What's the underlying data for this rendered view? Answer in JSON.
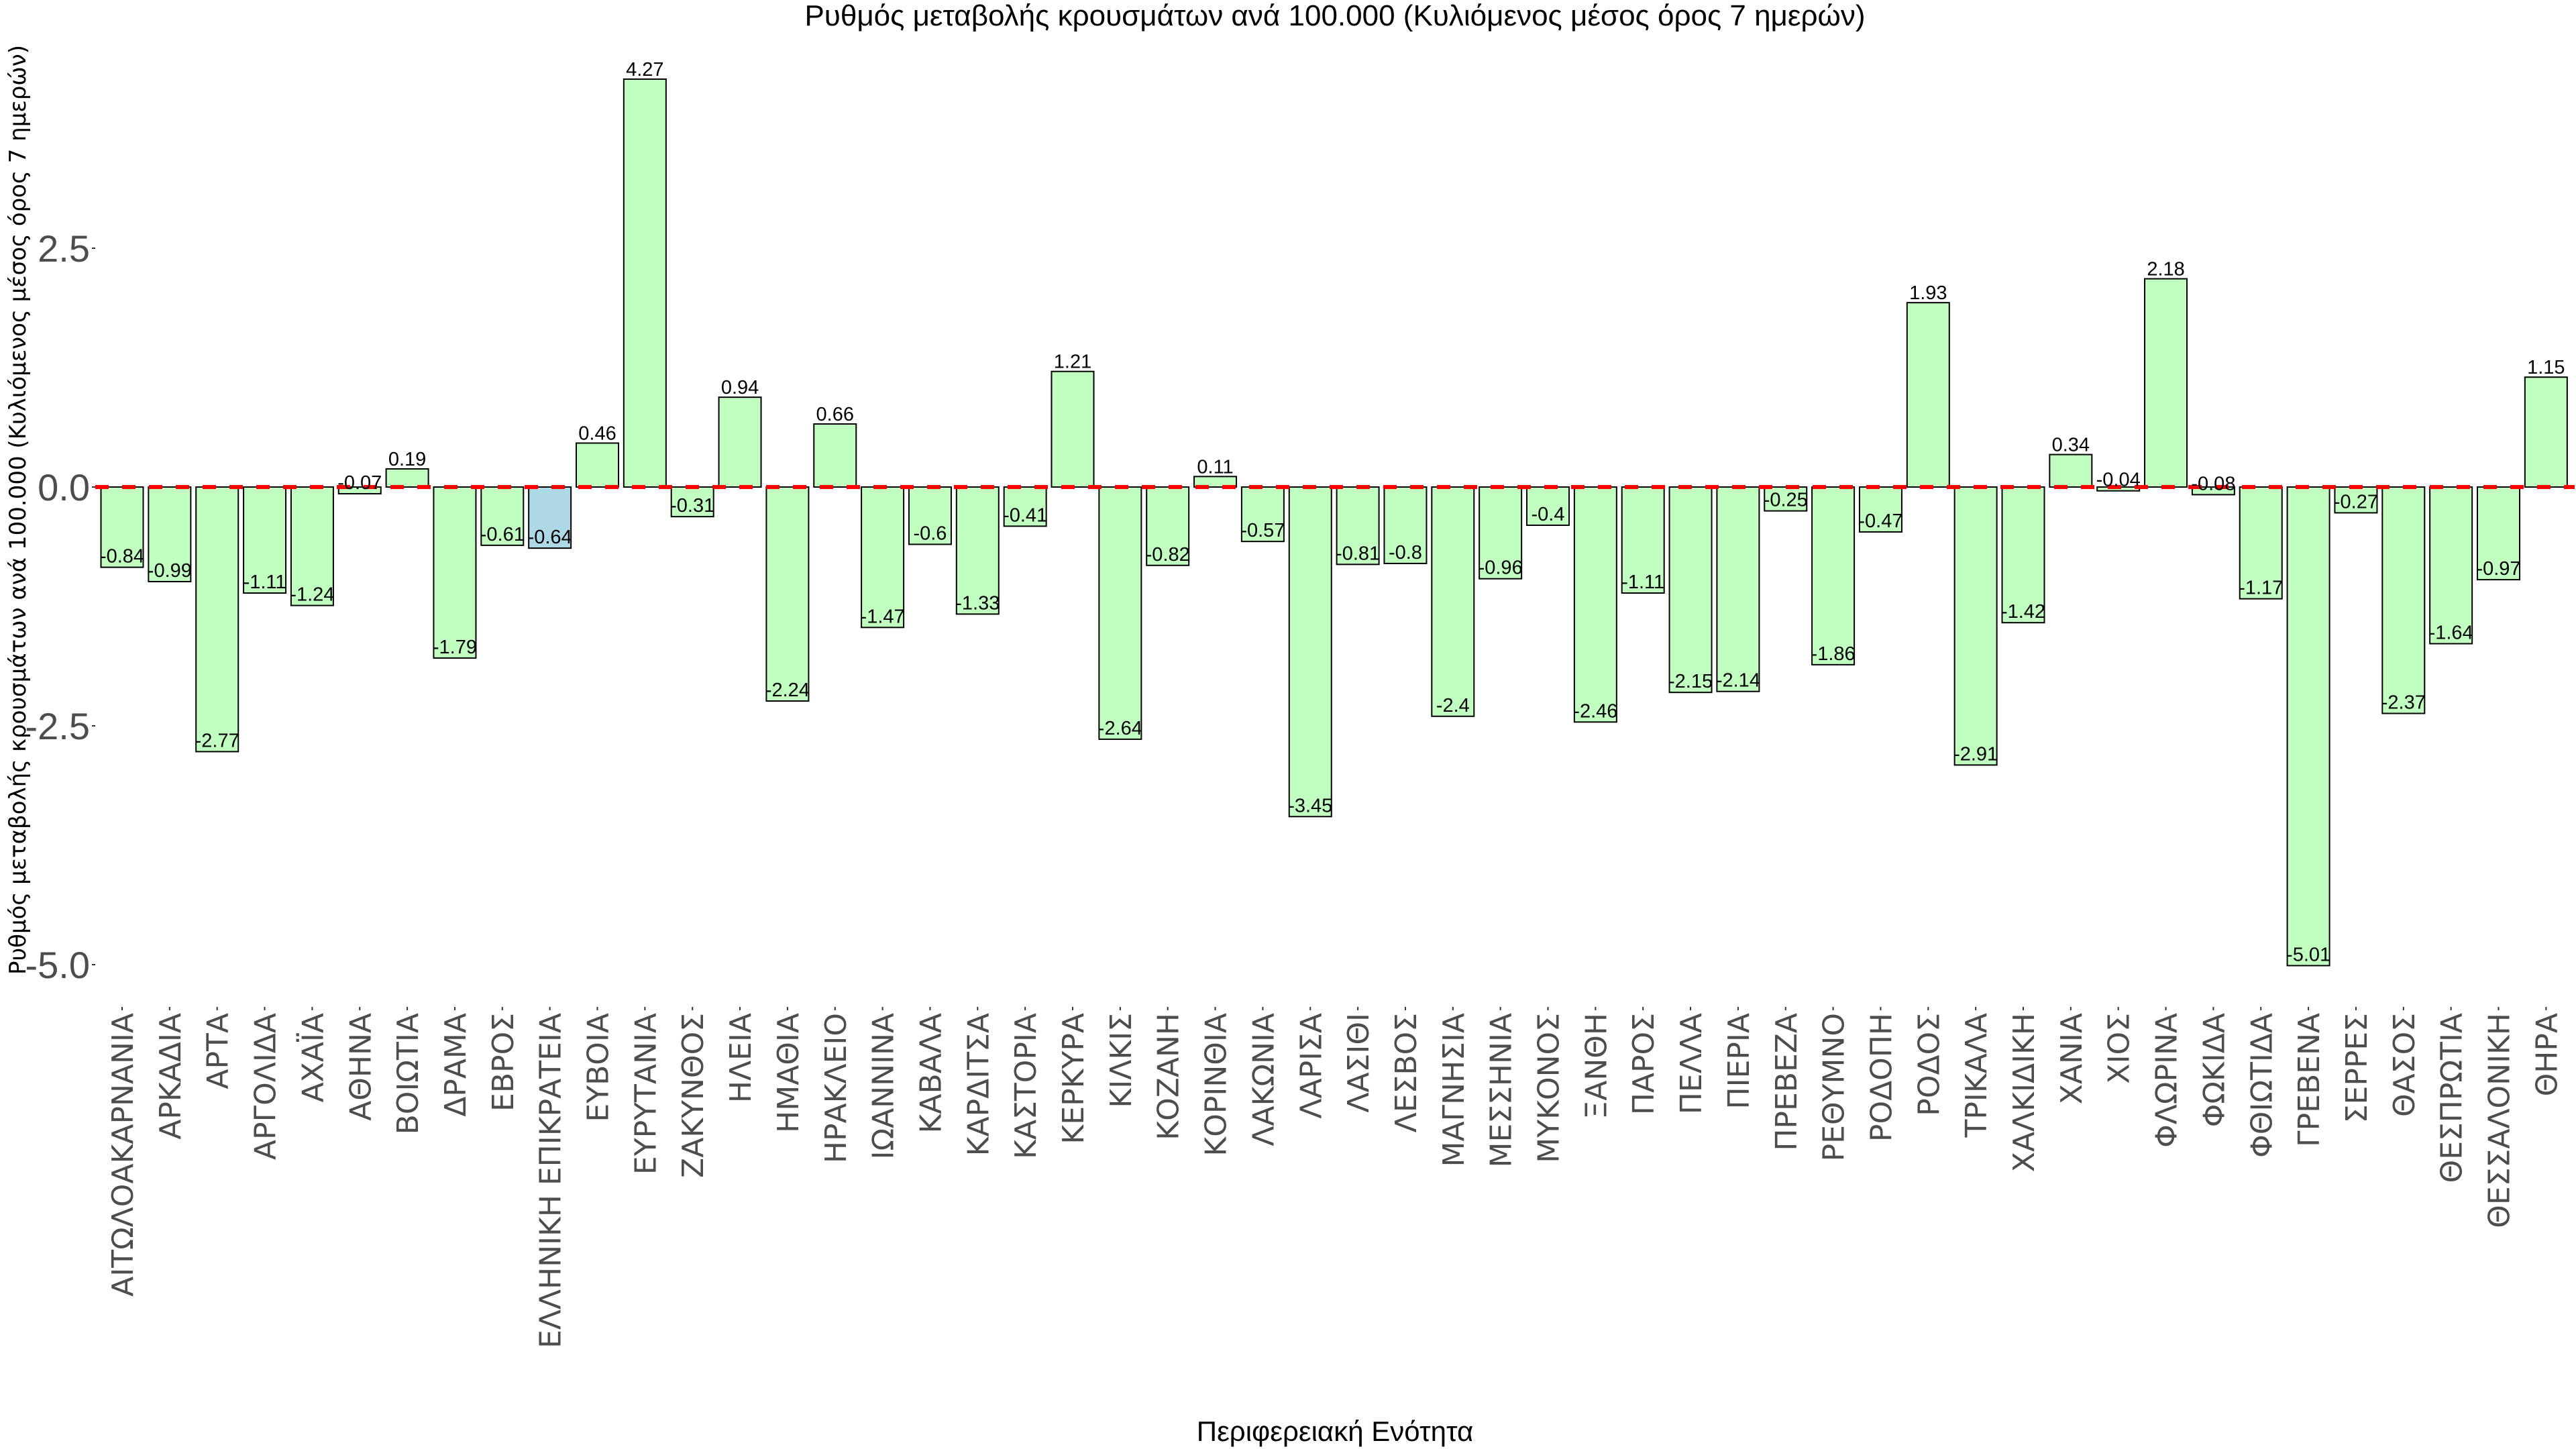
{
  "chart_data": {
    "type": "bar",
    "title": "Ρυθμός μεταβολής κρουσμάτων ανά 100.000 (Κυλιόμενος μέσος όρος 7 ημερών)",
    "xlabel": "Περιφερειακή Ενότητα",
    "ylabel": "Ρυθμός μεταβολής κρουσμάτων ανά 100.000 (Κυλιόμενος μέσος όρος 7 ημερών)",
    "ylim": [
      -5.2,
      4.35
    ],
    "yticks": [
      2.5,
      0.0,
      -2.5,
      -5.0
    ],
    "ytick_labels": [
      "2.5",
      "0.0",
      "-2.5",
      "-5.0"
    ],
    "grid": false,
    "legend": "none",
    "reference_line": {
      "value": 0,
      "style": "dashed",
      "color": "#ff0000"
    },
    "colors": {
      "default_bar": "#c1ffc1",
      "highlight_bar": "#add8e6",
      "bar_border": "#000000"
    },
    "highlight_category": "ΕΛΛΗΝΙΚΗ ΕΠΙΚΡΑΤΕΙΑ",
    "categories": [
      "ΑΙΤΩΛΟΑΚΑΡΝΑΝΙΑ",
      "ΑΡΚΑΔΙΑ",
      "ΑΡΤΑ",
      "ΑΡΓΟΛΙΔΑ",
      "ΑΧΑΪΑ",
      "ΑΘΗΝΑ",
      "ΒΟΙΩΤΙΑ",
      "ΔΡΑΜΑ",
      "ΕΒΡΟΣ",
      "ΕΛΛΗΝΙΚΗ ΕΠΙΚΡΑΤΕΙΑ",
      "ΕΥΒΟΙΑ",
      "ΕΥΡΥΤΑΝΙΑ",
      "ΖΑΚΥΝΘΟΣ",
      "ΗΛΕΙΑ",
      "ΗΜΑΘΙΑ",
      "ΗΡΑΚΛΕΙΟ",
      "ΙΩΑΝΝΙΝΑ",
      "ΚΑΒΑΛΑ",
      "ΚΑΡΔΙΤΣΑ",
      "ΚΑΣΤΟΡΙΑ",
      "ΚΕΡΚΥΡΑ",
      "ΚΙΛΚΙΣ",
      "ΚΟΖΑΝΗ",
      "ΚΟΡΙΝΘΙΑ",
      "ΛΑΚΩΝΙΑ",
      "ΛΑΡΙΣΑ",
      "ΛΑΣΙΘΙ",
      "ΛΕΣΒΟΣ",
      "ΜΑΓΝΗΣΙΑ",
      "ΜΕΣΣΗΝΙΑ",
      "ΜΥΚΟΝΟΣ",
      "ΞΑΝΘΗ",
      "ΠΑΡΟΣ",
      "ΠΕΛΛΑ",
      "ΠΙΕΡΙΑ",
      "ΠΡΕΒΕΖΑ",
      "ΡΕΘΥΜΝΟ",
      "ΡΟΔΟΠΗ",
      "ΡΟΔΟΣ",
      "ΤΡΙΚΑΛΑ",
      "ΧΑΛΚΙΔΙΚΗ",
      "ΧΑΝΙΑ",
      "ΧΙΟΣ",
      "ΦΛΩΡΙΝΑ",
      "ΦΩΚΙΔΑ",
      "ΦΘΙΩΤΙΔΑ",
      "ΓΡΕΒΕΝΑ",
      "ΣΕΡΡΕΣ",
      "ΘΑΣΟΣ",
      "ΘΕΣΠΡΩΤΙΑ",
      "ΘΕΣΣΑΛΟΝΙΚΗ",
      "ΘΗΡΑ"
    ],
    "values": [
      -0.84,
      -0.99,
      -2.77,
      -1.11,
      -1.24,
      -0.07,
      0.19,
      -1.79,
      -0.61,
      -0.64,
      0.46,
      4.27,
      -0.31,
      0.94,
      -2.24,
      0.66,
      -1.47,
      -0.6,
      -1.33,
      -0.41,
      1.21,
      -2.64,
      -0.82,
      0.11,
      -0.57,
      -3.45,
      -0.81,
      -0.8,
      -2.4,
      -0.96,
      -0.4,
      -2.46,
      -1.11,
      -2.15,
      -2.14,
      -0.25,
      -1.86,
      -0.47,
      1.93,
      -2.91,
      -1.42,
      0.34,
      -0.04,
      2.18,
      -0.08,
      -1.17,
      -5.01,
      -0.27,
      -2.37,
      -1.64,
      -0.97,
      1.15
    ],
    "value_labels": [
      "-0.84",
      "-0.99",
      "-2.77",
      "-1.11",
      "-1.24",
      "-0.07",
      "0.19",
      "-1.79",
      "-0.61",
      "-0.64",
      "0.46",
      "4.27",
      "-0.31",
      "0.94",
      "-2.24",
      "0.66",
      "-1.47",
      "-0.6",
      "-1.33",
      "-0.41",
      "1.21",
      "-2.64",
      "-0.82",
      "0.11",
      "-0.57",
      "-3.45",
      "-0.81",
      "-0.8",
      "-2.4",
      "-0.96",
      "-0.4",
      "-2.46",
      "-1.11",
      "-2.15",
      "-2.14",
      "-0.25",
      "-1.86",
      "-0.47",
      "1.93",
      "-2.91",
      "-1.42",
      "0.34",
      "-0.04",
      "2.18",
      "-0.08",
      "-1.17",
      "-5.01",
      "-0.27",
      "-2.37",
      "-1.64",
      "-0.97",
      "1.15"
    ]
  }
}
